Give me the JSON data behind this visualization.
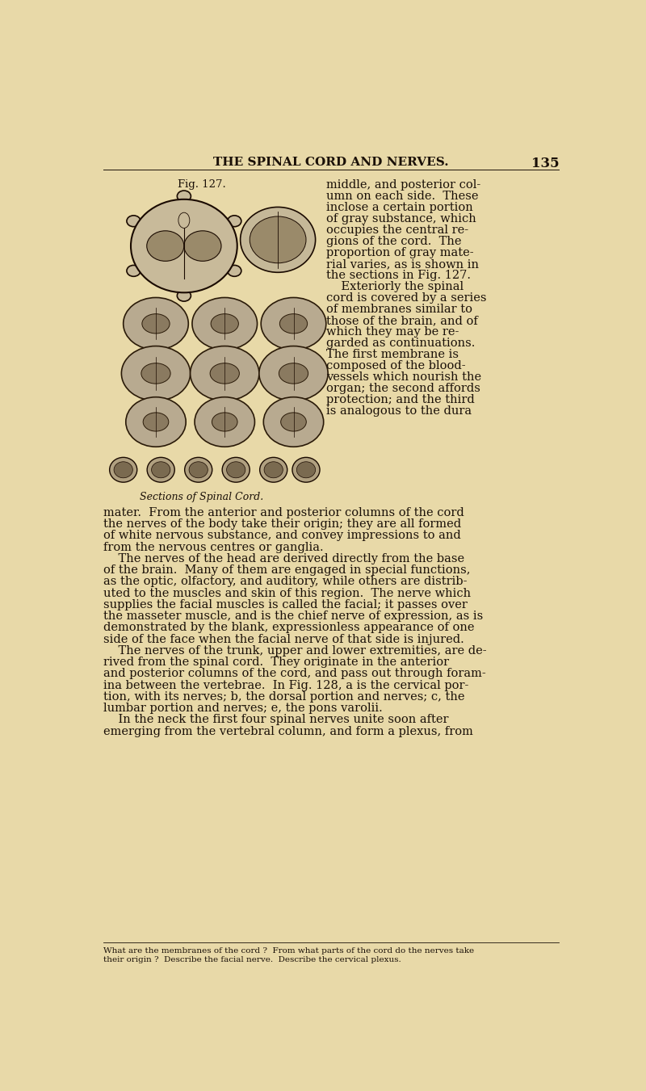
{
  "bg_color": "#e8d9a8",
  "page_title": "THE SPINAL CORD AND NERVES.",
  "page_number": "135",
  "fig_label": "Fig. 127.",
  "fig_caption": "Sections of Spinal Cord.",
  "header_fontsize": 11,
  "body_fontsize": 10.5,
  "footnote_fontsize": 7.5,
  "text_color": "#1a1008",
  "right_col_text": [
    "middle, and posterior col-",
    "umn on each side.  These",
    "inclose a certain portion",
    "of gray substance, which",
    "occupies the central re-",
    "gions of the cord.  The",
    "proportion of gray mate-",
    "rial varies, as is shown in",
    "the sections in Fig. 127.",
    "    Exteriorly the spinal",
    "cord is covered by a series",
    "of membranes similar to",
    "those of the brain, and of",
    "which they may be re-",
    "garded as continuations.",
    "The first membrane is",
    "composed of the blood-",
    "vessels which nourish the",
    "organ; the second affords",
    "protection; and the third",
    "is analogous to the dura"
  ],
  "body_text": [
    "mater.  From the anterior and posterior columns of the cord",
    "the nerves of the body take their origin; they are all formed",
    "of white nervous substance, and convey impressions to and",
    "from the nervous centres or ganglia.",
    "    The nerves of the head are derived directly from the base",
    "of the brain.  Many of them are engaged in special functions,",
    "as the optic, olfactory, and auditory, while others are distrib-",
    "uted to the muscles and skin of this region.  The nerve which",
    "supplies the facial muscles is called the facial; it passes over",
    "the masseter muscle, and is the chief nerve of expression, as is",
    "demonstrated by the blank, expressionless appearance of one",
    "side of the face when the facial nerve of that side is injured.",
    "    The nerves of the trunk, upper and lower extremities, are de-",
    "rived from the spinal cord.  They originate in the anterior",
    "and posterior columns of the cord, and pass out through foram-",
    "ina between the vertebrae.  In Fig. 128, a is the cervical por-",
    "tion, with its nerves; b, the dorsal portion and nerves; c, the",
    "lumbar portion and nerves; e, the pons varolii.",
    "    In the neck the first four spinal nerves unite soon after",
    "emerging from the vertebral column, and form a plexus, from"
  ],
  "footnote_text": [
    "What are the membranes of the cord ?  From what parts of the cord do the nerves take",
    "their origin ?  Describe the facial nerve.  Describe the cervical plexus."
  ]
}
